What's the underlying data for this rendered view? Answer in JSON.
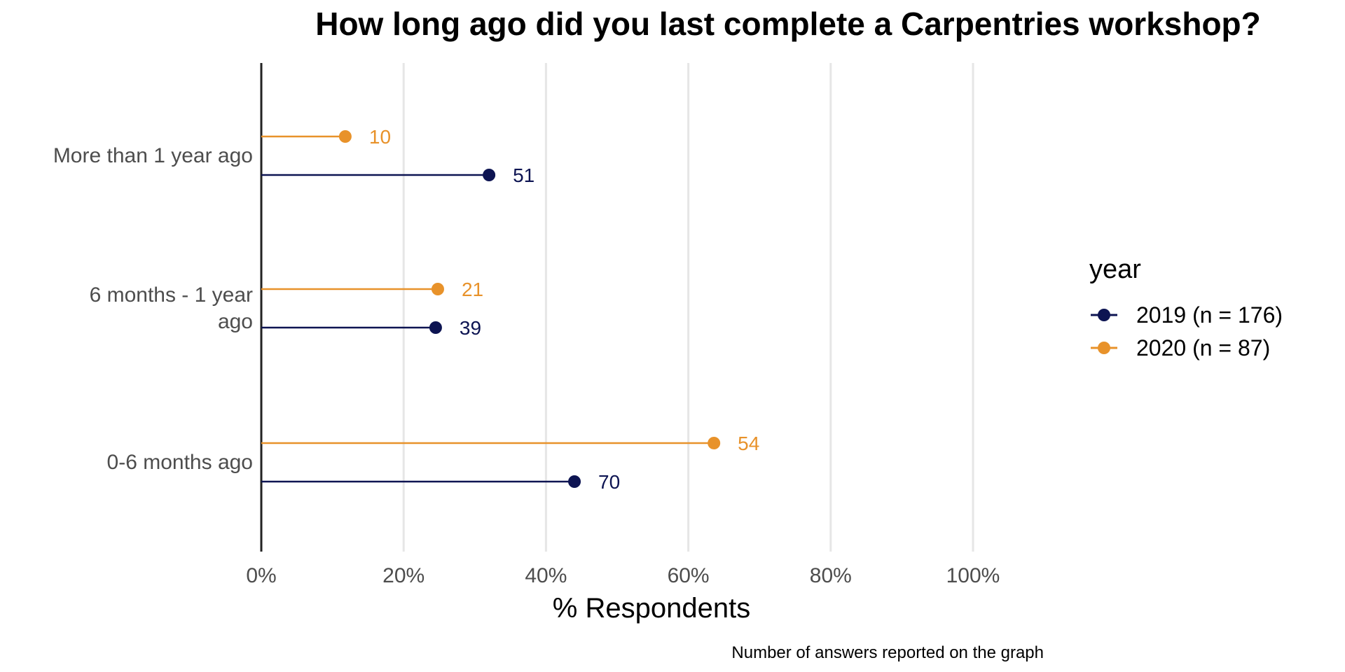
{
  "chart_data": {
    "type": "lollipop",
    "title": "How long ago did you last complete a Carpentries workshop?",
    "xlabel": "% Respondents",
    "ylabel": "",
    "caption": "Number of answers reported on the graph",
    "xlim": [
      0,
      100
    ],
    "x_ticks": [
      "0%",
      "20%",
      "40%",
      "60%",
      "80%",
      "100%"
    ],
    "x_tick_values": [
      0,
      20,
      40,
      60,
      80,
      100
    ],
    "grid": "vertical",
    "categories": [
      "More than 1 year ago",
      "6 months - 1 year ago",
      "0-6 months ago"
    ],
    "category_display_lines": [
      [
        "More than 1 year ago"
      ],
      [
        "6 months - 1 year",
        "ago"
      ],
      [
        "0-6 months ago"
      ]
    ],
    "legend": {
      "title": "year",
      "position": "right"
    },
    "series": [
      {
        "name": "2019 (n = 176)",
        "color": "#0d1452",
        "percent": [
          32,
          24.5,
          44
        ],
        "counts": [
          51,
          39,
          70
        ]
      },
      {
        "name": "2020 (n = 87)",
        "color": "#e8922a",
        "percent": [
          11.8,
          24.8,
          63.6
        ],
        "counts": [
          10,
          21,
          54
        ]
      }
    ]
  }
}
